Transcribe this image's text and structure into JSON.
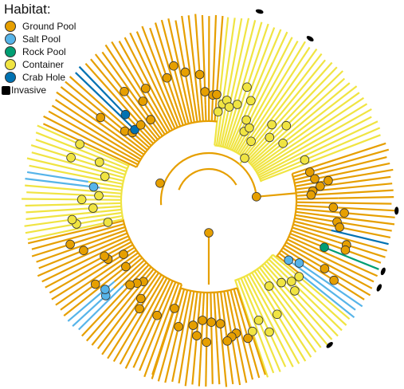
{
  "legend": {
    "title": "Habitat:",
    "items": [
      {
        "label": "Ground Pool",
        "color": "#E69F00"
      },
      {
        "label": "Salt Pool",
        "color": "#56B4E9"
      },
      {
        "label": "Rock Pool",
        "color": "#009E73"
      },
      {
        "label": "Container",
        "color": "#F0E442"
      },
      {
        "label": "Crab Hole",
        "color": "#0072B2"
      }
    ],
    "invasive_label": "Invasive"
  },
  "colors": {
    "ground_pool": "#E69F00",
    "salt_pool": "#56B4E9",
    "rock_pool": "#009E73",
    "container": "#F0E442",
    "crab_hole": "#0072B2",
    "invasive": "#000000"
  }
}
